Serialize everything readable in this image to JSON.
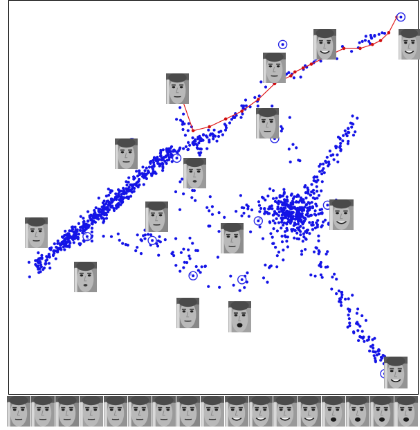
{
  "chart_data": {
    "type": "scatter",
    "title": "",
    "xlabel": "",
    "ylabel": "",
    "grid": false,
    "legend": "none",
    "axes_ticks": "none",
    "point_color": "#1414e6",
    "circle_color": "#2a2ae6",
    "path_color": "#e01a1a",
    "path_point_color": "#d01010",
    "xlim": [
      0,
      100
    ],
    "ylim": [
      0,
      100
    ],
    "series": [
      {
        "role": "embedded-face-points",
        "clusters": [
          {
            "kind": "dense-segment",
            "from": [
              6,
              32
            ],
            "to": [
              40,
              62
            ],
            "count": 360,
            "spread": 1.6
          },
          {
            "kind": "dense-segment",
            "from": [
              13,
              38
            ],
            "to": [
              28,
              50
            ],
            "count": 110,
            "spread": 1.2
          },
          {
            "kind": "dense-segment",
            "from": [
              40,
              61
            ],
            "to": [
              50,
              67
            ],
            "count": 40,
            "spread": 0.9
          },
          {
            "kind": "scatter-segment",
            "from": [
              40,
              76
            ],
            "to": [
              46,
              62
            ],
            "count": 18,
            "spread": 1.4
          },
          {
            "kind": "scatter-segment",
            "from": [
              14,
              39
            ],
            "to": [
              35,
              40
            ],
            "count": 30,
            "spread": 1.5
          },
          {
            "kind": "scatter-segment",
            "from": [
              45,
              60
            ],
            "to": [
              61,
              76
            ],
            "count": 42,
            "spread": 1.0
          },
          {
            "kind": "scatter-segment",
            "from": [
              60,
              77
            ],
            "to": [
              92,
              92
            ],
            "count": 40,
            "spread": 1.1
          },
          {
            "kind": "blob",
            "center": [
              70,
              46
            ],
            "radius": [
              7,
              5
            ],
            "count": 280
          },
          {
            "kind": "scatter-segment",
            "from": [
              70,
              46
            ],
            "to": [
              85,
              70
            ],
            "count": 80,
            "spread": 1.4
          },
          {
            "kind": "scatter-segment",
            "from": [
              70,
              44
            ],
            "to": [
              91,
              8
            ],
            "count": 110,
            "spread": 2.0
          },
          {
            "kind": "scatter-segment",
            "from": [
              70,
              46
            ],
            "to": [
              56,
              47
            ],
            "count": 30,
            "spread": 2.0
          },
          {
            "kind": "scatter-segment",
            "from": [
              70,
              44
            ],
            "to": [
              62,
              28
            ],
            "count": 25,
            "spread": 2.5
          },
          {
            "kind": "scatter-segment",
            "from": [
              33,
              38
            ],
            "to": [
              60,
              28
            ],
            "count": 45,
            "spread": 4.5
          },
          {
            "kind": "scatter-segment",
            "from": [
              40,
              56
            ],
            "to": [
              55,
              40
            ],
            "count": 25,
            "spread": 4.0
          },
          {
            "kind": "scatter-segment",
            "from": [
              64,
              76
            ],
            "to": [
              70,
              58
            ],
            "count": 12,
            "spread": 2.0
          }
        ]
      },
      {
        "role": "trajectory-path",
        "points": [
          [
            42,
            76
          ],
          [
            45,
            67
          ],
          [
            49,
            68
          ],
          [
            53,
            70
          ],
          [
            57,
            72
          ],
          [
            61,
            75
          ],
          [
            65,
            79
          ],
          [
            69,
            81
          ],
          [
            70,
            82
          ],
          [
            72,
            83
          ],
          [
            74,
            84
          ],
          [
            78,
            86
          ],
          [
            82,
            88
          ],
          [
            86,
            88
          ],
          [
            89,
            89
          ],
          [
            91,
            90
          ],
          [
            93,
            92
          ],
          [
            95,
            96
          ]
        ]
      }
    ],
    "circled_points": [
      [
        42,
        76
      ],
      [
        41,
        60
      ],
      [
        30,
        64
      ],
      [
        8,
        39
      ],
      [
        19,
        40
      ],
      [
        35,
        39
      ],
      [
        45,
        30
      ],
      [
        57,
        29
      ],
      [
        65,
        65
      ],
      [
        67,
        89
      ],
      [
        79,
        90
      ],
      [
        96,
        96
      ],
      [
        78,
        48
      ],
      [
        61,
        44
      ],
      [
        92,
        5
      ]
    ],
    "face_thumbnails": [
      {
        "name": "face-top-path-1",
        "mood": "neutral"
      },
      {
        "name": "face-top-path-2",
        "mood": "neutral"
      },
      {
        "name": "face-top-path-3",
        "mood": "smile"
      },
      {
        "name": "face-top-path-4",
        "mood": "smile"
      },
      {
        "name": "face-upper-mid",
        "mood": "neutral"
      },
      {
        "name": "face-left-upper",
        "mood": "neutral"
      },
      {
        "name": "face-center-upper",
        "mood": "pout"
      },
      {
        "name": "face-center",
        "mood": "neutral"
      },
      {
        "name": "face-left-edge",
        "mood": "neutral"
      },
      {
        "name": "face-left-lower",
        "mood": "pout"
      },
      {
        "name": "face-middle",
        "mood": "neutral"
      },
      {
        "name": "face-right-blob",
        "mood": "smile"
      },
      {
        "name": "face-bottom-left",
        "mood": "neutral"
      },
      {
        "name": "face-bottom-mid",
        "mood": "open"
      },
      {
        "name": "face-bottom-right",
        "mood": "smile"
      }
    ],
    "strip_count": 17
  }
}
